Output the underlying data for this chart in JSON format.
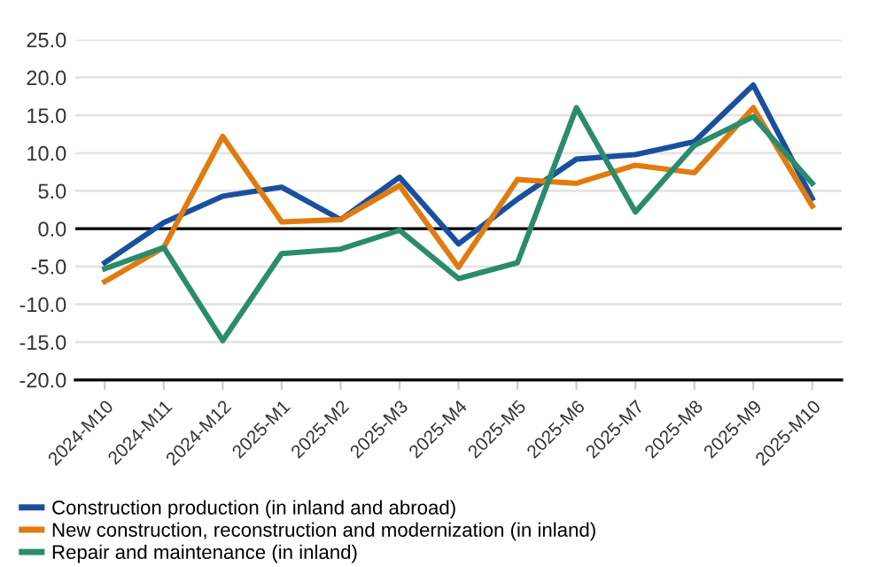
{
  "chart_data": {
    "type": "line",
    "categories": [
      "2024-M10",
      "2024-M11",
      "2024-M12",
      "2025-M1",
      "2025-M2",
      "2025-M3",
      "2025-M4",
      "2025-M5",
      "2025-M6",
      "2025-M7",
      "2025-M8",
      "2025-M9",
      "2025-M10"
    ],
    "series": [
      {
        "name": "Construction production (in inland and abroad)",
        "color": "#1a4fa0",
        "values": [
          -4.5,
          0.8,
          4.3,
          5.5,
          1.2,
          6.8,
          -2.0,
          3.9,
          9.2,
          9.8,
          11.5,
          19.0,
          4.0
        ]
      },
      {
        "name": "New construction, reconstruction and modernization (in inland)",
        "color": "#e07b10",
        "values": [
          -7.0,
          -2.5,
          12.2,
          0.9,
          1.2,
          5.7,
          -5.1,
          6.5,
          6.0,
          8.4,
          7.4,
          16.0,
          3.0
        ]
      },
      {
        "name": "Repair and maintenance (in inland)",
        "color": "#2a8c6c",
        "values": [
          -5.3,
          -2.5,
          -14.8,
          -3.3,
          -2.7,
          -0.2,
          -6.6,
          -4.5,
          16.0,
          2.2,
          11.0,
          14.8,
          6.0
        ]
      }
    ],
    "ylim": [
      -20,
      25
    ],
    "yticks": [
      {
        "value": -20,
        "label": "-20.0"
      },
      {
        "value": -15,
        "label": "-15.0"
      },
      {
        "value": -10,
        "label": "-10.0"
      },
      {
        "value": -5,
        "label": "-5.0"
      },
      {
        "value": 0,
        "label": "0.0"
      },
      {
        "value": 5,
        "label": "5.0"
      },
      {
        "value": 10,
        "label": "10.0"
      },
      {
        "value": 15,
        "label": "15.0"
      },
      {
        "value": 20,
        "label": "20.0"
      },
      {
        "value": 25,
        "label": "25.0"
      }
    ],
    "grid": "y",
    "ref_lines": [
      {
        "axis": "y",
        "value": 0,
        "color": "#000000"
      }
    ],
    "legend": "bottom",
    "marker": "none",
    "line_style": "solid"
  }
}
